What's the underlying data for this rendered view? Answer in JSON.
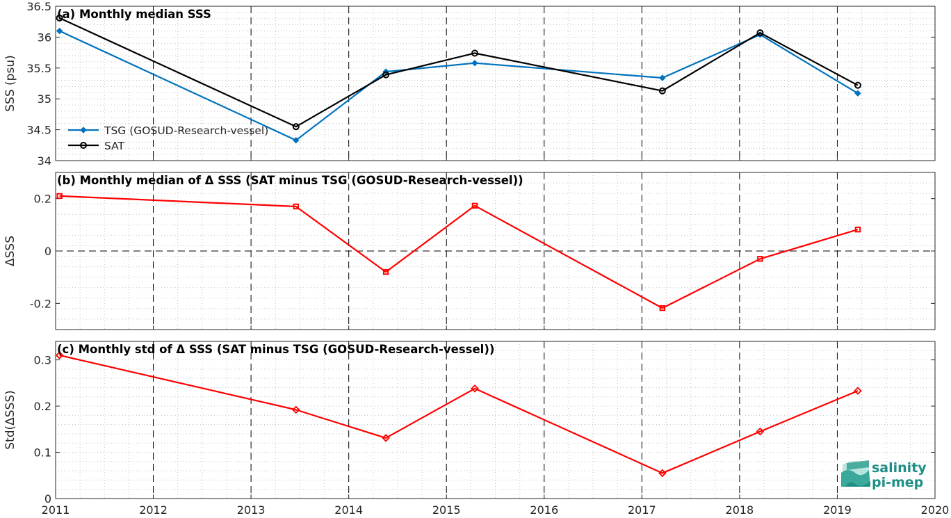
{
  "chart_data": [
    {
      "panel": "a",
      "type": "line",
      "title": "(a) Monthly median SSS",
      "xlabel": "",
      "ylabel": "SSS (psu)",
      "xlim": [
        2011,
        2020
      ],
      "ylim": [
        34,
        36.5
      ],
      "yticks": [
        34,
        34.5,
        35,
        35.5,
        36,
        36.5
      ],
      "ytick_labels": [
        "34",
        "34.5",
        "35",
        "35.5",
        "36",
        "36.5"
      ],
      "grid": "minor dotted",
      "legend": "bottom-left",
      "series": [
        {
          "name": "TSG (GOSUD-Research-vessel)",
          "color": "#0072bd",
          "marker": "filled-diamond",
          "x": [
            2011.04,
            2013.46,
            2014.38,
            2015.29,
            2017.21,
            2018.21,
            2019.21
          ],
          "y": [
            36.1,
            34.33,
            35.44,
            35.58,
            35.34,
            36.04,
            35.09
          ]
        },
        {
          "name": "SAT",
          "color": "#000000",
          "marker": "open-circle",
          "x": [
            2011.04,
            2013.46,
            2014.38,
            2015.29,
            2017.21,
            2018.21,
            2019.21
          ],
          "y": [
            36.31,
            34.55,
            35.39,
            35.74,
            35.13,
            36.07,
            35.22
          ]
        }
      ]
    },
    {
      "panel": "b",
      "type": "line",
      "title": "(b) Monthly median of Δ SSS (SAT minus TSG (GOSUD-Research-vessel))",
      "xlabel": "",
      "ylabel": "ΔSSS",
      "xlim": [
        2011,
        2020
      ],
      "ylim": [
        -0.3,
        0.3
      ],
      "yticks": [
        -0.2,
        0,
        0.2
      ],
      "ytick_labels": [
        "-0.2",
        "0",
        "0.2"
      ],
      "zero_line": "dashed",
      "grid": "minor dotted",
      "series": [
        {
          "color": "#ff0000",
          "marker": "open-square",
          "x": [
            2011.04,
            2013.46,
            2014.38,
            2015.29,
            2017.21,
            2018.21,
            2019.21
          ],
          "y": [
            0.21,
            0.17,
            -0.08,
            0.173,
            -0.218,
            -0.03,
            0.082
          ]
        }
      ]
    },
    {
      "panel": "c",
      "type": "line",
      "title": "(c) Monthly std of Δ SSS (SAT minus TSG (GOSUD-Research-vessel))",
      "xlabel": "",
      "ylabel": "Std(ΔSSS)",
      "xlim": [
        2011,
        2020
      ],
      "ylim": [
        0,
        0.34
      ],
      "yticks": [
        0,
        0.1,
        0.2,
        0.3
      ],
      "ytick_labels": [
        "0",
        "0.1",
        "0.2",
        "0.3"
      ],
      "xticks": [
        2011,
        2012,
        2013,
        2014,
        2015,
        2016,
        2017,
        2018,
        2019,
        2020
      ],
      "xtick_labels": [
        "2011",
        "2012",
        "2013",
        "2014",
        "2015",
        "2016",
        "2017",
        "2018",
        "2019",
        "2020"
      ],
      "grid": "minor dotted",
      "series": [
        {
          "color": "#ff0000",
          "marker": "open-diamond",
          "x": [
            2011.04,
            2013.46,
            2014.38,
            2015.29,
            2017.21,
            2018.21,
            2019.21
          ],
          "y": [
            0.31,
            0.192,
            0.131,
            0.238,
            0.055,
            0.145,
            0.233
          ]
        }
      ]
    }
  ],
  "logo": {
    "line1": "salinity",
    "line2": "pi-mep",
    "color": "#1e8f86"
  }
}
